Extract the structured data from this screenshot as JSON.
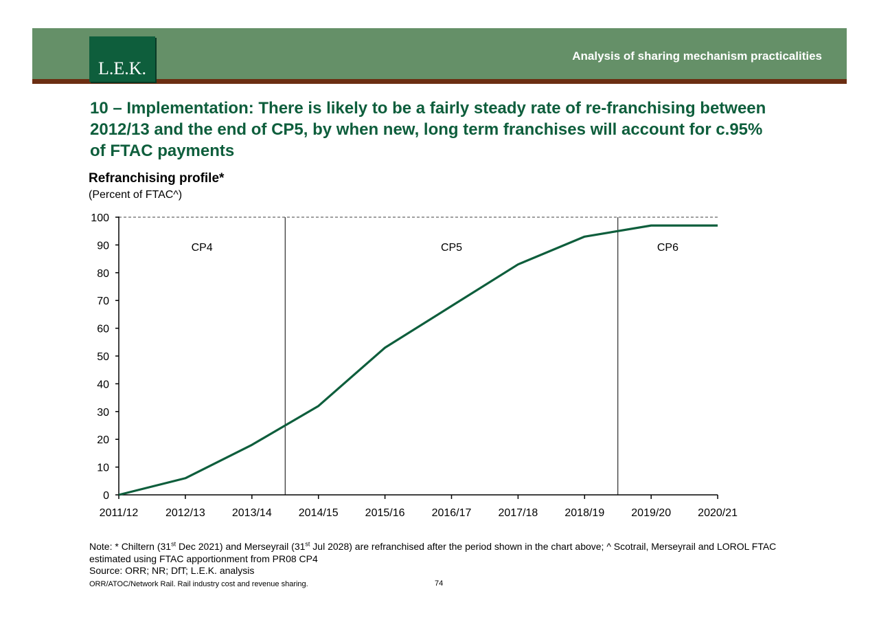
{
  "header": {
    "logo_text": "L.E.K.",
    "section_title": "Analysis of sharing mechanism practicalities"
  },
  "slide": {
    "title": "10 – Implementation: There is likely to be a fairly steady rate of re-franchising between 2012/13 and the end of CP5, by when new, long term franchises will account for c.95% of FTAC payments"
  },
  "chart_data": {
    "type": "line",
    "title": "Refranchising profile*",
    "subtitle": "(Percent of FTAC^)",
    "categories": [
      "2011/12",
      "2012/13",
      "2013/14",
      "2014/15",
      "2015/16",
      "2016/17",
      "2017/18",
      "2018/19",
      "2019/20",
      "2020/21"
    ],
    "series": [
      {
        "values": [
          0,
          6,
          18,
          32,
          53,
          68,
          83,
          93,
          97,
          97
        ]
      }
    ],
    "ylim": [
      0,
      100
    ],
    "yticks": [
      0,
      10,
      20,
      30,
      40,
      50,
      60,
      70,
      80,
      90,
      100
    ],
    "reference_line": 100,
    "periods": [
      {
        "label": "CP4",
        "from": 0,
        "to": 2.5
      },
      {
        "label": "CP5",
        "from": 2.5,
        "to": 7.5
      },
      {
        "label": "CP6",
        "from": 7.5,
        "to": 9
      }
    ],
    "line_color": "#0e5e3c",
    "grid": false
  },
  "footer": {
    "note_prefix": "Note: * Chiltern (31",
    "note_sup1": "st",
    "note_mid": " Dec 2021) and Merseyrail (31",
    "note_sup2": "st",
    "note_rest": " Jul 2028) are refranchised after the period shown in the chart above; ^ Scotrail, Merseyrail and LOROL FTAC estimated using FTAC apportionment from PR08 CP4",
    "source": "Source: ORR; NR; DfT; L.E.K. analysis",
    "document": "ORR/ATOC/Network Rail.  Rail industry cost and revenue sharing.",
    "page_number": "74"
  },
  "colors": {
    "header_green": "#659068",
    "header_rule": "#6b2e12",
    "brand_green": "#0e5e3c"
  }
}
